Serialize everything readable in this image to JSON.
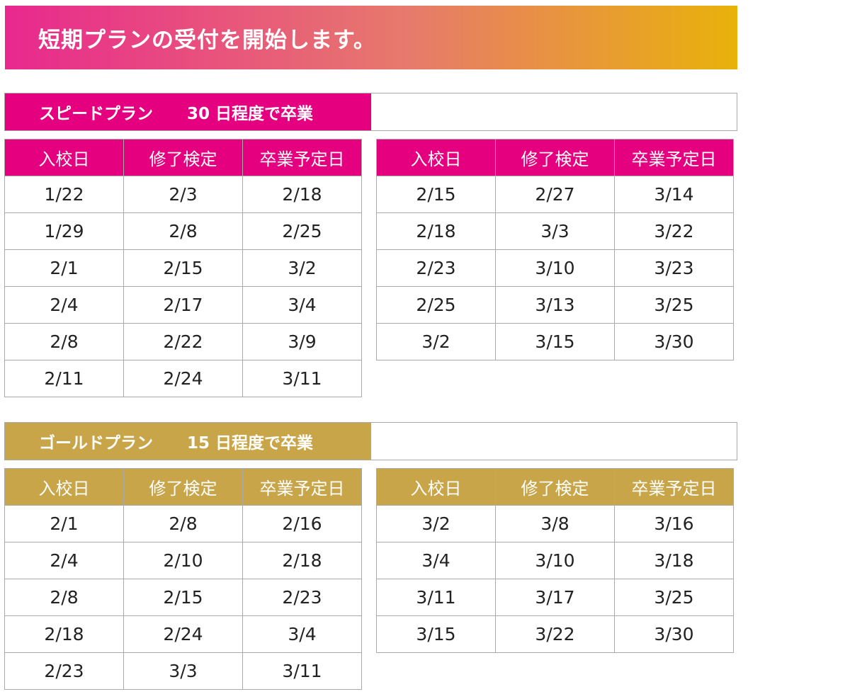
{
  "banner": {
    "title": "短期プランの受付を開始します。"
  },
  "columns": [
    "入校日",
    "修了検定",
    "卒業予定日"
  ],
  "colors": {
    "speed": "#e4007f",
    "gold": "#c8a548"
  },
  "speed_plan": {
    "name": "スピードプラン",
    "duration": "30 日程度で卒業",
    "left_rows": [
      [
        "1/22",
        "2/3",
        "2/18"
      ],
      [
        "1/29",
        "2/8",
        "2/25"
      ],
      [
        "2/1",
        "2/15",
        "3/2"
      ],
      [
        "2/4",
        "2/17",
        "3/4"
      ],
      [
        "2/8",
        "2/22",
        "3/9"
      ],
      [
        "2/11",
        "2/24",
        "3/11"
      ]
    ],
    "right_rows": [
      [
        "2/15",
        "2/27",
        "3/14"
      ],
      [
        "2/18",
        "3/3",
        "3/22"
      ],
      [
        "2/23",
        "3/10",
        "3/23"
      ],
      [
        "2/25",
        "3/13",
        "3/25"
      ],
      [
        "3/2",
        "3/15",
        "3/30"
      ]
    ]
  },
  "gold_plan": {
    "name": "ゴールドプラン",
    "duration": "15 日程度で卒業",
    "left_rows": [
      [
        "2/1",
        "2/8",
        "2/16"
      ],
      [
        "2/4",
        "2/10",
        "2/18"
      ],
      [
        "2/8",
        "2/15",
        "2/23"
      ],
      [
        "2/18",
        "2/24",
        "3/4"
      ],
      [
        "2/23",
        "3/3",
        "3/11"
      ]
    ],
    "right_rows": [
      [
        "3/2",
        "3/8",
        "3/16"
      ],
      [
        "3/4",
        "3/10",
        "3/18"
      ],
      [
        "3/11",
        "3/17",
        "3/25"
      ],
      [
        "3/15",
        "3/22",
        "3/30"
      ]
    ]
  }
}
